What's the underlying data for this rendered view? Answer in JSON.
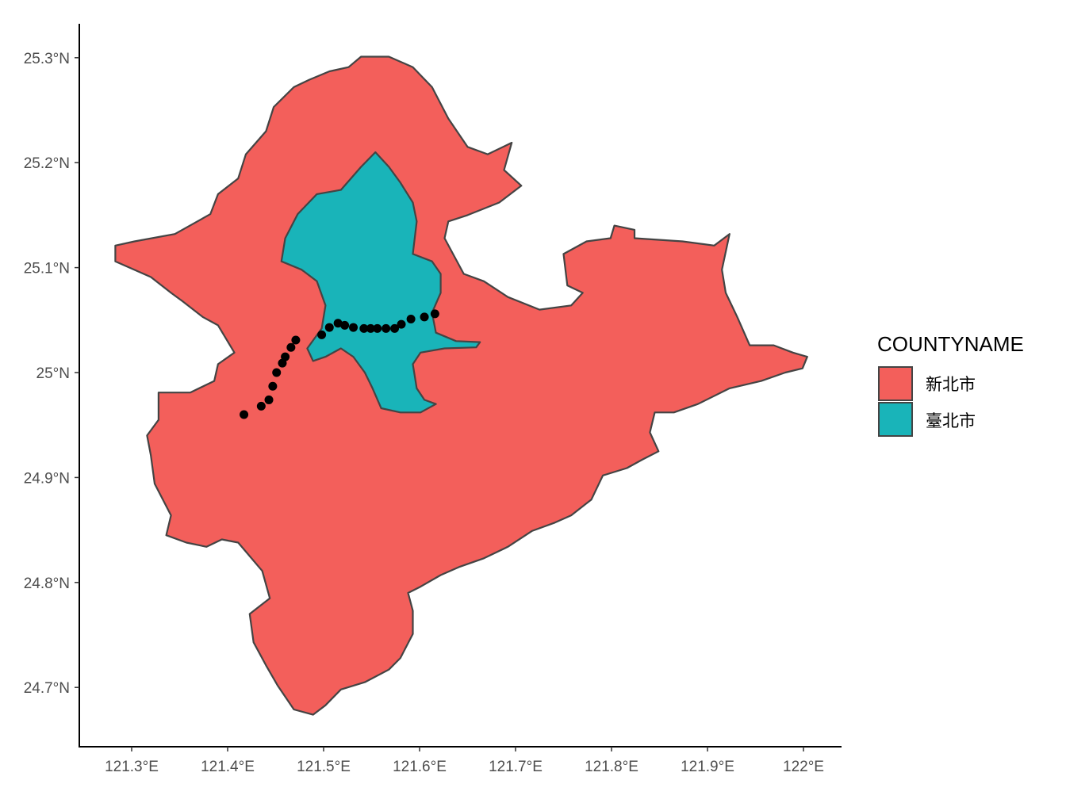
{
  "chart_data": {
    "type": "map",
    "xlim": [
      121.245,
      122.04
    ],
    "ylim": [
      24.645,
      25.333
    ],
    "x_ticks": [
      121.3,
      121.4,
      121.5,
      121.6,
      121.7,
      121.8,
      121.9,
      122.0
    ],
    "x_tick_labels": [
      "121.3°E",
      "121.4°E",
      "121.5°E",
      "121.6°E",
      "121.7°E",
      "121.8°E",
      "121.9°E",
      "122°E"
    ],
    "y_ticks": [
      25.3,
      25.2,
      25.1,
      25.0,
      24.9,
      24.8,
      24.7
    ],
    "y_tick_labels": [
      "25.3°N",
      "25.2°N",
      "25.1°N",
      "25°N",
      "24.9°N",
      "24.8°N",
      "24.7°N"
    ],
    "grid": false,
    "legend": {
      "title": "COUNTYNAME",
      "position": "right",
      "entries": [
        {
          "label": "新北市",
          "color": "#F35F5B"
        },
        {
          "label": "臺北市",
          "color": "#19B4B9"
        }
      ]
    },
    "border_color": "#444444",
    "point_color": "#000000",
    "regions": [
      {
        "name": "新北市",
        "color": "#F35F5B",
        "coords": [
          [
            121.539,
            25.301
          ],
          [
            121.568,
            25.301
          ],
          [
            121.593,
            25.291
          ],
          [
            121.613,
            25.272
          ],
          [
            121.63,
            25.242
          ],
          [
            121.65,
            25.215
          ],
          [
            121.671,
            25.208
          ],
          [
            121.696,
            25.219
          ],
          [
            121.688,
            25.193
          ],
          [
            121.706,
            25.178
          ],
          [
            121.683,
            25.162
          ],
          [
            121.65,
            25.15
          ],
          [
            121.63,
            25.144
          ],
          [
            121.626,
            25.128
          ],
          [
            121.646,
            25.094
          ],
          [
            121.667,
            25.087
          ],
          [
            121.692,
            25.072
          ],
          [
            121.725,
            25.06
          ],
          [
            121.758,
            25.064
          ],
          [
            121.77,
            25.076
          ],
          [
            121.754,
            25.083
          ],
          [
            121.75,
            25.113
          ],
          [
            121.774,
            25.125
          ],
          [
            121.799,
            25.128
          ],
          [
            121.803,
            25.14
          ],
          [
            121.824,
            25.136
          ],
          [
            121.824,
            25.128
          ],
          [
            121.874,
            25.125
          ],
          [
            121.907,
            25.121
          ],
          [
            121.923,
            25.132
          ],
          [
            121.915,
            25.098
          ],
          [
            121.919,
            25.076
          ],
          [
            121.931,
            25.053
          ],
          [
            121.944,
            25.026
          ],
          [
            121.969,
            25.026
          ],
          [
            121.989,
            25.019
          ],
          [
            122.004,
            25.015
          ],
          [
            121.999,
            25.004
          ],
          [
            121.981,
            25.0
          ],
          [
            121.956,
            24.992
          ],
          [
            121.923,
            24.985
          ],
          [
            121.89,
            24.97
          ],
          [
            121.865,
            24.962
          ],
          [
            121.845,
            24.962
          ],
          [
            121.84,
            24.943
          ],
          [
            121.849,
            24.925
          ],
          [
            121.832,
            24.917
          ],
          [
            121.816,
            24.909
          ],
          [
            121.791,
            24.902
          ],
          [
            121.779,
            24.879
          ],
          [
            121.758,
            24.864
          ],
          [
            121.741,
            24.857
          ],
          [
            121.717,
            24.849
          ],
          [
            121.692,
            24.834
          ],
          [
            121.667,
            24.823
          ],
          [
            121.642,
            24.815
          ],
          [
            121.622,
            24.807
          ],
          [
            121.601,
            24.796
          ],
          [
            121.588,
            24.79
          ],
          [
            121.593,
            24.773
          ],
          [
            121.593,
            24.751
          ],
          [
            121.58,
            24.728
          ],
          [
            121.568,
            24.717
          ],
          [
            121.543,
            24.705
          ],
          [
            121.518,
            24.698
          ],
          [
            121.502,
            24.683
          ],
          [
            121.489,
            24.674
          ],
          [
            121.469,
            24.679
          ],
          [
            121.452,
            24.702
          ],
          [
            121.44,
            24.721
          ],
          [
            121.427,
            24.743
          ],
          [
            121.423,
            24.77
          ],
          [
            121.444,
            24.785
          ],
          [
            121.436,
            24.811
          ],
          [
            121.411,
            24.838
          ],
          [
            121.394,
            24.841
          ],
          [
            121.378,
            24.834
          ],
          [
            121.357,
            24.838
          ],
          [
            121.336,
            24.845
          ],
          [
            121.341,
            24.864
          ],
          [
            121.324,
            24.894
          ],
          [
            121.32,
            24.921
          ],
          [
            121.316,
            24.94
          ],
          [
            121.328,
            24.955
          ],
          [
            121.328,
            24.981
          ],
          [
            121.361,
            24.981
          ],
          [
            121.386,
            24.992
          ],
          [
            121.39,
            25.008
          ],
          [
            121.407,
            25.019
          ],
          [
            121.39,
            25.045
          ],
          [
            121.374,
            25.053
          ],
          [
            121.353,
            25.068
          ],
          [
            121.341,
            25.076
          ],
          [
            121.32,
            25.091
          ],
          [
            121.283,
            25.106
          ],
          [
            121.283,
            25.121
          ],
          [
            121.303,
            25.125
          ],
          [
            121.345,
            25.132
          ],
          [
            121.382,
            25.151
          ],
          [
            121.39,
            25.17
          ],
          [
            121.411,
            25.185
          ],
          [
            121.419,
            25.208
          ],
          [
            121.44,
            25.23
          ],
          [
            121.448,
            25.253
          ],
          [
            121.469,
            25.272
          ],
          [
            121.485,
            25.279
          ],
          [
            121.506,
            25.287
          ],
          [
            121.526,
            25.291
          ]
        ]
      },
      {
        "name": "臺北市",
        "color": "#19B4B9",
        "coords": [
          [
            121.554,
            25.21
          ],
          [
            121.568,
            25.196
          ],
          [
            121.58,
            25.181
          ],
          [
            121.593,
            25.162
          ],
          [
            121.597,
            25.144
          ],
          [
            121.593,
            25.113
          ],
          [
            121.613,
            25.106
          ],
          [
            121.622,
            25.094
          ],
          [
            121.622,
            25.076
          ],
          [
            121.613,
            25.057
          ],
          [
            121.617,
            25.038
          ],
          [
            121.638,
            25.03
          ],
          [
            121.663,
            25.029
          ],
          [
            121.659,
            25.024
          ],
          [
            121.626,
            25.023
          ],
          [
            121.601,
            25.019
          ],
          [
            121.593,
            25.008
          ],
          [
            121.597,
            24.985
          ],
          [
            121.605,
            24.974
          ],
          [
            121.617,
            24.97
          ],
          [
            121.601,
            24.962
          ],
          [
            121.58,
            24.962
          ],
          [
            121.56,
            24.966
          ],
          [
            121.551,
            24.985
          ],
          [
            121.543,
            25.0
          ],
          [
            121.531,
            25.015
          ],
          [
            121.518,
            25.023
          ],
          [
            121.502,
            25.015
          ],
          [
            121.489,
            25.011
          ],
          [
            121.483,
            25.023
          ],
          [
            121.498,
            25.042
          ],
          [
            121.502,
            25.064
          ],
          [
            121.493,
            25.087
          ],
          [
            121.477,
            25.098
          ],
          [
            121.456,
            25.106
          ],
          [
            121.46,
            25.128
          ],
          [
            121.473,
            25.151
          ],
          [
            121.493,
            25.17
          ],
          [
            121.518,
            25.174
          ],
          [
            121.539,
            25.196
          ]
        ]
      }
    ],
    "points": [
      [
        121.417,
        24.96
      ],
      [
        121.435,
        24.968
      ],
      [
        121.443,
        24.974
      ],
      [
        121.447,
        24.987
      ],
      [
        121.451,
        25.0
      ],
      [
        121.457,
        25.009
      ],
      [
        121.46,
        25.015
      ],
      [
        121.466,
        25.024
      ],
      [
        121.471,
        25.031
      ],
      [
        121.498,
        25.036
      ],
      [
        121.506,
        25.043
      ],
      [
        121.515,
        25.047
      ],
      [
        121.522,
        25.045
      ],
      [
        121.531,
        25.043
      ],
      [
        121.542,
        25.042
      ],
      [
        121.549,
        25.042
      ],
      [
        121.556,
        25.042
      ],
      [
        121.565,
        25.042
      ],
      [
        121.574,
        25.042
      ],
      [
        121.581,
        25.046
      ],
      [
        121.591,
        25.051
      ],
      [
        121.605,
        25.053
      ],
      [
        121.616,
        25.056
      ]
    ]
  }
}
